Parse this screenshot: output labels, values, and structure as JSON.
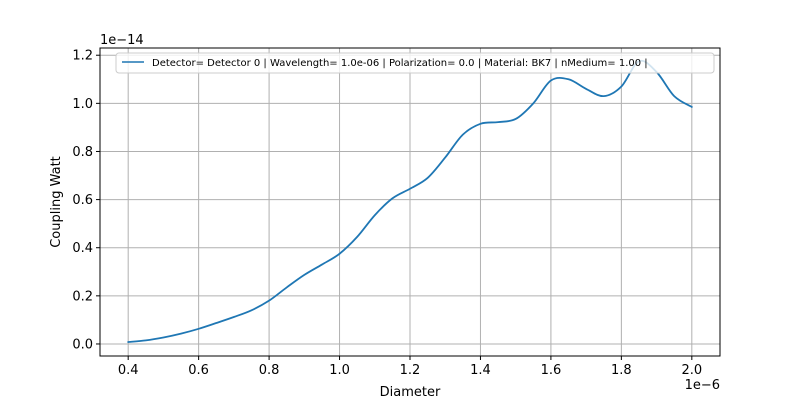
{
  "chart_data": {
    "type": "line",
    "title": "",
    "xlabel": "Diameter",
    "ylabel": "Coupling  Watt",
    "x_offset_label": "1e−6",
    "y_offset_label": "1e−14",
    "x_scale": 1e-06,
    "y_scale": 1e-14,
    "xlim": [
      0.32,
      2.08
    ],
    "ylim": [
      -0.05,
      1.23
    ],
    "x_ticks": [
      0.4,
      0.6,
      0.8,
      1.0,
      1.2,
      1.4,
      1.6,
      1.8,
      2.0
    ],
    "x_tick_labels": [
      "0.4",
      "0.6",
      "0.8",
      "1.0",
      "1.2",
      "1.4",
      "1.6",
      "1.8",
      "2.0"
    ],
    "y_ticks": [
      0.0,
      0.2,
      0.4,
      0.6,
      0.8,
      1.0,
      1.2
    ],
    "y_tick_labels": [
      "0.0",
      "0.2",
      "0.4",
      "0.6",
      "0.8",
      "1.0",
      "1.2"
    ],
    "grid": true,
    "legend_position": "top",
    "series": [
      {
        "name": "Detector= Detector 0  | Wavelength= 1.0e-06 | Polarization= 0.0 | Material: BK7 | nMedium= 1.00 |",
        "color": "#1f77b4",
        "x": [
          0.4,
          0.45,
          0.5,
          0.55,
          0.6,
          0.65,
          0.7,
          0.75,
          0.8,
          0.85,
          0.9,
          0.95,
          1.0,
          1.05,
          1.1,
          1.15,
          1.2,
          1.25,
          1.3,
          1.35,
          1.4,
          1.45,
          1.5,
          1.55,
          1.6,
          1.65,
          1.7,
          1.75,
          1.8,
          1.85,
          1.9,
          1.95,
          2.0
        ],
        "y": [
          0.008,
          0.015,
          0.027,
          0.043,
          0.063,
          0.087,
          0.112,
          0.14,
          0.18,
          0.235,
          0.287,
          0.33,
          0.375,
          0.445,
          0.535,
          0.605,
          0.645,
          0.69,
          0.775,
          0.87,
          0.915,
          0.922,
          0.935,
          1.0,
          1.095,
          1.1,
          1.06,
          1.03,
          1.07,
          1.175,
          1.13,
          1.03,
          0.985
        ]
      }
    ]
  }
}
